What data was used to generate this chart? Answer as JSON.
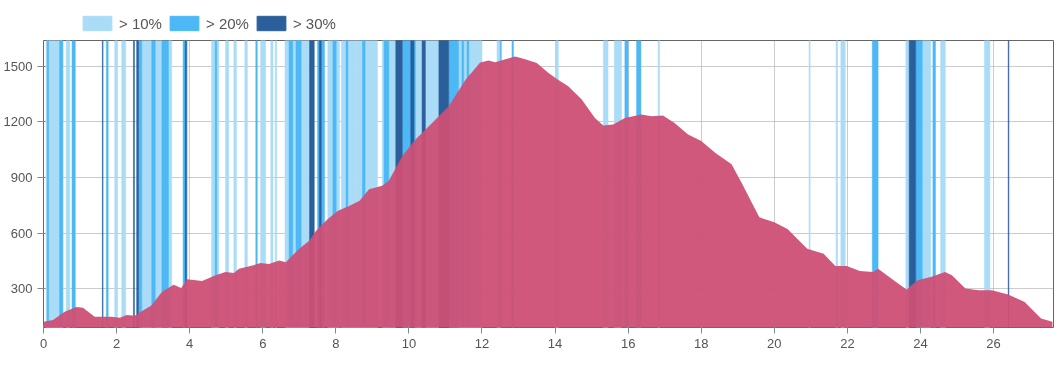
{
  "chart_data": {
    "type": "area",
    "xlim": [
      0,
      27.64
    ],
    "ylim": [
      90,
      1640
    ],
    "xticks": [
      0,
      2,
      4,
      6,
      8,
      10,
      12,
      14,
      16,
      18,
      20,
      22,
      24,
      26
    ],
    "yticks": [
      300,
      600,
      900,
      1200,
      1500
    ],
    "grid": true,
    "legend": "top left",
    "x": [
      0,
      0.26,
      0.58,
      0.9,
      1.08,
      1.4,
      1.86,
      2.09,
      2.28,
      2.5,
      2.69,
      2.96,
      3.24,
      3.56,
      3.77,
      3.93,
      4.34,
      4.71,
      4.98,
      5.21,
      5.35,
      5.72,
      5.94,
      6.17,
      6.45,
      6.63,
      7.0,
      7.28,
      7.46,
      7.78,
      8.06,
      8.38,
      8.65,
      8.91,
      9.27,
      9.45,
      9.82,
      10.18,
      10.64,
      11.09,
      11.55,
      11.95,
      12.18,
      12.36,
      12.64,
      12.91,
      13.18,
      13.5,
      13.82,
      14.05,
      14.36,
      14.73,
      15.09,
      15.32,
      15.59,
      15.91,
      16.36,
      16.64,
      16.95,
      17.27,
      17.64,
      18.0,
      18.38,
      18.83,
      19.1,
      19.59,
      20.0,
      20.36,
      20.9,
      21.35,
      21.67,
      21.98,
      22.34,
      22.7,
      22.84,
      23.33,
      23.62,
      23.92,
      24.28,
      24.67,
      24.86,
      25.23,
      25.59,
      25.95,
      26.4,
      26.85,
      27.3,
      27.61
    ],
    "series": [
      {
        "color": "#cd4f75",
        "values": [
          121,
          130,
          175,
          201,
          196,
          148,
          148,
          142,
          157,
          153,
          178,
          210,
          282,
          321,
          304,
          350,
          341,
          372,
          390,
          384,
          407,
          425,
          438,
          433,
          452,
          443,
          515,
          560,
          613,
          676,
          721,
          748,
          775,
          837,
          855,
          882,
          1016,
          1106,
          1196,
          1285,
          1428,
          1521,
          1532,
          1523,
          1539,
          1554,
          1539,
          1518,
          1464,
          1432,
          1393,
          1321,
          1222,
          1181,
          1187,
          1222,
          1240,
          1231,
          1235,
          1195,
          1133,
          1097,
          1034,
          972,
          873,
          685,
          658,
          622,
          515,
          488,
          422,
          422,
          395,
          390,
          407,
          336,
          295,
          345,
          363,
          390,
          372,
          300,
          291,
          291,
          268,
          228,
          139,
          121
        ]
      }
    ],
    "bands": [
      {
        "axis": "x",
        "from": 0.07,
        "to": 0.53,
        "color": "#aadcf7",
        "label": "> 10%"
      },
      {
        "axis": "x",
        "from": 0.62,
        "to": 0.72,
        "color": "#aadcf7"
      },
      {
        "axis": "x",
        "from": 1.95,
        "to": 2.03,
        "color": "#aadcf7"
      },
      {
        "axis": "x",
        "from": 2.14,
        "to": 2.25,
        "color": "#aadcf7"
      },
      {
        "axis": "x",
        "from": 2.69,
        "to": 2.96,
        "color": "#aadcf7"
      },
      {
        "axis": "x",
        "from": 3.06,
        "to": 3.24,
        "color": "#aadcf7"
      },
      {
        "axis": "x",
        "from": 3.42,
        "to": 3.51,
        "color": "#aadcf7"
      },
      {
        "axis": "x",
        "from": 4.6,
        "to": 4.8,
        "color": "#aadcf7"
      },
      {
        "axis": "x",
        "from": 4.98,
        "to": 5.07,
        "color": "#aadcf7"
      },
      {
        "axis": "x",
        "from": 5.21,
        "to": 5.28,
        "color": "#aadcf7"
      },
      {
        "axis": "x",
        "from": 5.51,
        "to": 5.58,
        "color": "#aadcf7"
      },
      {
        "axis": "x",
        "from": 5.94,
        "to": 6.08,
        "color": "#aadcf7"
      },
      {
        "axis": "x",
        "from": 6.22,
        "to": 6.28,
        "color": "#aadcf7"
      },
      {
        "axis": "x",
        "from": 6.34,
        "to": 6.38,
        "color": "#aadcf7"
      },
      {
        "axis": "x",
        "from": 6.61,
        "to": 7.28,
        "color": "#aadcf7"
      },
      {
        "axis": "x",
        "from": 7.78,
        "to": 8.1,
        "color": "#aadcf7"
      },
      {
        "axis": "x",
        "from": 8.15,
        "to": 8.56,
        "color": "#aadcf7"
      },
      {
        "axis": "x",
        "from": 8.56,
        "to": 9.14,
        "color": "#aadcf7"
      },
      {
        "axis": "x",
        "from": 9.27,
        "to": 9.64,
        "color": "#aadcf7"
      },
      {
        "axis": "x",
        "from": 10.18,
        "to": 10.82,
        "color": "#aadcf7"
      },
      {
        "axis": "x",
        "from": 11.36,
        "to": 12.0,
        "color": "#aadcf7"
      },
      {
        "axis": "x",
        "from": 12.41,
        "to": 12.5,
        "color": "#aadcf7"
      },
      {
        "axis": "x",
        "from": 14.02,
        "to": 14.09,
        "color": "#aadcf7"
      },
      {
        "axis": "x",
        "from": 15.32,
        "to": 15.45,
        "color": "#aadcf7"
      },
      {
        "axis": "x",
        "from": 15.62,
        "to": 15.82,
        "color": "#aadcf7"
      },
      {
        "axis": "x",
        "from": 16.82,
        "to": 16.86,
        "color": "#aadcf7"
      },
      {
        "axis": "x",
        "from": 20.95,
        "to": 20.98,
        "color": "#aadcf7"
      },
      {
        "axis": "x",
        "from": 21.69,
        "to": 21.73,
        "color": "#aadcf7"
      },
      {
        "axis": "x",
        "from": 21.82,
        "to": 21.94,
        "color": "#aadcf7"
      },
      {
        "axis": "x",
        "from": 23.6,
        "to": 23.69,
        "color": "#aadcf7"
      },
      {
        "axis": "x",
        "from": 24.05,
        "to": 24.28,
        "color": "#aadcf7"
      },
      {
        "axis": "x",
        "from": 24.55,
        "to": 24.68,
        "color": "#aadcf7"
      },
      {
        "axis": "x",
        "from": 25.75,
        "to": 25.9,
        "color": "#aadcf7"
      },
      {
        "axis": "x",
        "from": 0.1,
        "to": 0.14,
        "color": "#4cb8f5",
        "label": "> 20%"
      },
      {
        "axis": "x",
        "from": 0.44,
        "to": 0.53,
        "color": "#4cb8f5"
      },
      {
        "axis": "x",
        "from": 0.78,
        "to": 0.87,
        "color": "#4cb8f5"
      },
      {
        "axis": "x",
        "from": 1.72,
        "to": 1.77,
        "color": "#4cb8f5"
      },
      {
        "axis": "x",
        "from": 2.6,
        "to": 2.69,
        "color": "#4cb8f5"
      },
      {
        "axis": "x",
        "from": 2.96,
        "to": 3.06,
        "color": "#4cb8f5"
      },
      {
        "axis": "x",
        "from": 3.24,
        "to": 3.42,
        "color": "#4cb8f5"
      },
      {
        "axis": "x",
        "from": 3.82,
        "to": 3.93,
        "color": "#4cb8f5"
      },
      {
        "axis": "x",
        "from": 4.7,
        "to": 4.74,
        "color": "#4cb8f5"
      },
      {
        "axis": "x",
        "from": 5.81,
        "to": 5.85,
        "color": "#4cb8f5"
      },
      {
        "axis": "x",
        "from": 6.72,
        "to": 6.82,
        "color": "#4cb8f5"
      },
      {
        "axis": "x",
        "from": 6.91,
        "to": 7.05,
        "color": "#4cb8f5"
      },
      {
        "axis": "x",
        "from": 7.5,
        "to": 7.69,
        "color": "#4cb8f5"
      },
      {
        "axis": "x",
        "from": 7.92,
        "to": 8.01,
        "color": "#4cb8f5"
      },
      {
        "axis": "x",
        "from": 8.28,
        "to": 8.33,
        "color": "#4cb8f5"
      },
      {
        "axis": "x",
        "from": 8.73,
        "to": 8.8,
        "color": "#4cb8f5"
      },
      {
        "axis": "x",
        "from": 9.32,
        "to": 9.45,
        "color": "#4cb8f5"
      },
      {
        "axis": "x",
        "from": 9.82,
        "to": 10.18,
        "color": "#4cb8f5"
      },
      {
        "axis": "x",
        "from": 11.09,
        "to": 11.36,
        "color": "#4cb8f5"
      },
      {
        "axis": "x",
        "from": 11.45,
        "to": 11.5,
        "color": "#4cb8f5"
      },
      {
        "axis": "x",
        "from": 11.59,
        "to": 11.64,
        "color": "#4cb8f5"
      },
      {
        "axis": "x",
        "from": 12.5,
        "to": 12.53,
        "color": "#4cb8f5"
      },
      {
        "axis": "x",
        "from": 12.82,
        "to": 12.86,
        "color": "#4cb8f5"
      },
      {
        "axis": "x",
        "from": 15.91,
        "to": 16.0,
        "color": "#4cb8f5"
      },
      {
        "axis": "x",
        "from": 16.23,
        "to": 16.35,
        "color": "#4cb8f5"
      },
      {
        "axis": "x",
        "from": 22.68,
        "to": 22.84,
        "color": "#4cb8f5"
      },
      {
        "axis": "x",
        "from": 23.87,
        "to": 24.05,
        "color": "#4cb8f5"
      },
      {
        "axis": "x",
        "from": 24.34,
        "to": 24.41,
        "color": "#4cb8f5"
      },
      {
        "axis": "x",
        "from": 1.61,
        "to": 1.63,
        "color": "#2b5f9c",
        "label": "> 30%"
      },
      {
        "axis": "x",
        "from": 2.46,
        "to": 2.49,
        "color": "#2b5f9c"
      },
      {
        "axis": "x",
        "from": 2.55,
        "to": 2.6,
        "color": "#2b5f9c"
      },
      {
        "axis": "x",
        "from": 3.88,
        "to": 3.91,
        "color": "#2b5f9c"
      },
      {
        "axis": "x",
        "from": 7.28,
        "to": 7.41,
        "color": "#2b5f9c"
      },
      {
        "axis": "x",
        "from": 7.55,
        "to": 7.6,
        "color": "#2b5f9c"
      },
      {
        "axis": "x",
        "from": 9.64,
        "to": 9.82,
        "color": "#2b5f9c"
      },
      {
        "axis": "x",
        "from": 10.05,
        "to": 10.14,
        "color": "#2b5f9c"
      },
      {
        "axis": "x",
        "from": 10.36,
        "to": 10.45,
        "color": "#2b5f9c"
      },
      {
        "axis": "x",
        "from": 10.82,
        "to": 11.09,
        "color": "#2b5f9c"
      },
      {
        "axis": "x",
        "from": 23.69,
        "to": 23.87,
        "color": "#2b5f9c"
      },
      {
        "axis": "x",
        "from": 26.4,
        "to": 26.42,
        "color": "#2b5f9c"
      }
    ]
  }
}
